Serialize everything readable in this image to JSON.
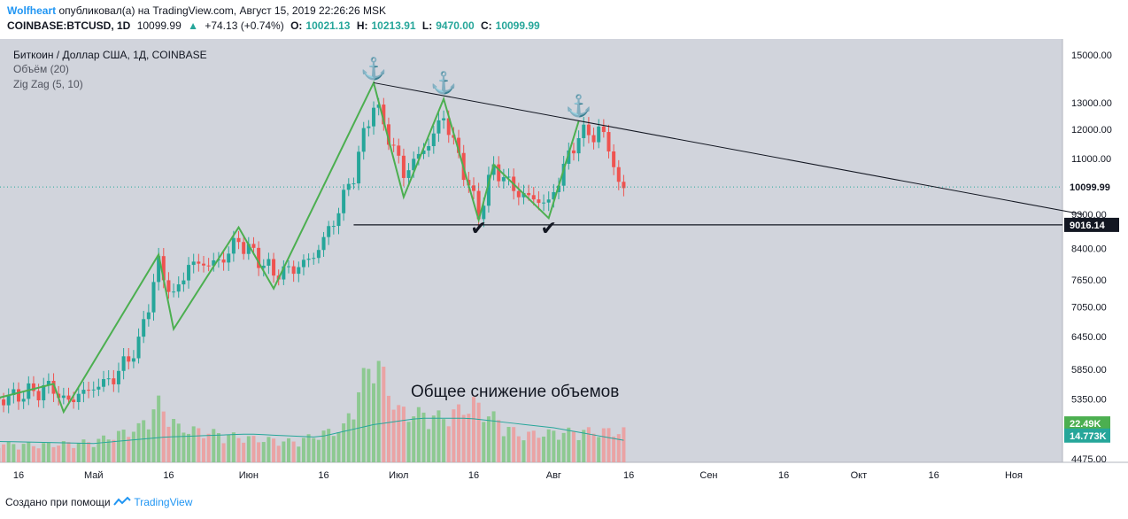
{
  "header": {
    "author": "Wolfheart",
    "published": "опубликовал(а) на TradingView.com, Август 15, 2019 22:26:26 MSK",
    "symbol": "COINBASE:BTCUSD, 1D",
    "last": "10099.99",
    "change": "+74.13 (+0.74%)",
    "o_label": "O:",
    "o_value": "10021.13",
    "h_label": "H:",
    "h_value": "10213.91",
    "l_label": "L:",
    "l_value": "9470.00",
    "c_label": "C:",
    "c_value": "10099.99"
  },
  "legend": {
    "title": "Биткоин / Доллар США, 1Д, COINBASE",
    "volume": "Объём (20)",
    "zigzag": "Zig Zag (5, 10)"
  },
  "annotation": "Общее снижение объемов",
  "footer": {
    "prefix": "Создано при помощи",
    "brand": "TradingView"
  },
  "colors": {
    "up": "#26a69a",
    "down": "#ef5350",
    "zigzag": "#4caf50",
    "plot_bg": "#d1d4dc",
    "volume_up": "#81c784",
    "volume_down": "#ef9a9a"
  },
  "icons": [
    "anchor-icon",
    "checkmark-icon",
    "tradingview-logo-icon"
  ],
  "chart_data": {
    "type": "candlestick",
    "title": "Биткоин / Доллар США, 1Д, COINBASE",
    "y_scale": "log",
    "ylim": [
      4300,
      15900
    ],
    "y_ticks": [
      "15000.00",
      "13000.00",
      "12000.00",
      "11000.00",
      "9300.00",
      "8400.00",
      "7650.00",
      "7050.00",
      "6450.00",
      "5850.00",
      "5350.00",
      "4475.00"
    ],
    "x_ticks": [
      "16",
      "Май",
      "16",
      "Июн",
      "16",
      "Июл",
      "16",
      "Авг",
      "16",
      "Сен",
      "16",
      "Окт",
      "16",
      "Ноя"
    ],
    "x_tick_dates": [
      "2019-04-16",
      "2019-05-01",
      "2019-05-16",
      "2019-06-01",
      "2019-06-16",
      "2019-07-01",
      "2019-07-16",
      "2019-08-01",
      "2019-08-16",
      "2019-09-01",
      "2019-09-16",
      "2019-10-01",
      "2019-10-16",
      "2019-11-01"
    ],
    "price_badges": [
      {
        "label": "10099.99",
        "value": 10099.99
      },
      {
        "label": "9016.14",
        "value": 9016.14
      }
    ],
    "volume_badges": [
      {
        "label": "22.49K",
        "value": 22490
      },
      {
        "label": "14.773K",
        "value": 14773
      }
    ],
    "zigzag_points": [
      [
        "2019-04-01",
        5150
      ],
      [
        "2019-04-23",
        5600
      ],
      [
        "2019-04-25",
        5150
      ],
      [
        "2019-05-14",
        8250
      ],
      [
        "2019-05-17",
        6600
      ],
      [
        "2019-05-30",
        8950
      ],
      [
        "2019-06-06",
        7450
      ],
      [
        "2019-06-26",
        13800
      ],
      [
        "2019-07-02",
        9800
      ],
      [
        "2019-07-10",
        13150
      ],
      [
        "2019-07-17",
        9150
      ],
      [
        "2019-07-20",
        10800
      ],
      [
        "2019-07-31",
        9200
      ],
      [
        "2019-08-06",
        12300
      ]
    ],
    "resistance_line": [
      [
        "2019-06-26",
        13800
      ],
      [
        "2019-11-15",
        9300
      ]
    ],
    "support_line": [
      [
        "2019-06-22",
        9016.14
      ],
      [
        "2019-11-15",
        9016.14
      ]
    ],
    "anchors": [
      [
        "2019-06-26",
        14100
      ],
      [
        "2019-07-10",
        13500
      ],
      [
        "2019-08-06",
        12600
      ]
    ],
    "checkmarks": [
      [
        "2019-07-17",
        8750
      ],
      [
        "2019-07-31",
        8750
      ]
    ],
    "key_prices": [
      [
        "2019-04-01",
        5100
      ],
      [
        "2019-04-10",
        5300
      ],
      [
        "2019-04-23",
        5550
      ],
      [
        "2019-04-25",
        5300
      ],
      [
        "2019-05-05",
        5700
      ],
      [
        "2019-05-10",
        6300
      ],
      [
        "2019-05-14",
        8000
      ],
      [
        "2019-05-17",
        7250
      ],
      [
        "2019-05-20",
        8000
      ],
      [
        "2019-05-26",
        8050
      ],
      [
        "2019-05-30",
        8600
      ],
      [
        "2019-06-06",
        7800
      ],
      [
        "2019-06-10",
        7900
      ],
      [
        "2019-06-14",
        8200
      ],
      [
        "2019-06-18",
        9100
      ],
      [
        "2019-06-22",
        10500
      ],
      [
        "2019-06-26",
        13000
      ],
      [
        "2019-07-02",
        10500
      ],
      [
        "2019-07-07",
        11500
      ],
      [
        "2019-07-10",
        12500
      ],
      [
        "2019-07-12",
        11500
      ],
      [
        "2019-07-16",
        9700
      ],
      [
        "2019-07-17",
        9300
      ],
      [
        "2019-07-20",
        10700
      ],
      [
        "2019-07-25",
        9900
      ],
      [
        "2019-07-31",
        9600
      ],
      [
        "2019-08-06",
        11800
      ],
      [
        "2019-08-10",
        11900
      ],
      [
        "2019-08-12",
        11500
      ],
      [
        "2019-08-14",
        10050
      ],
      [
        "2019-08-15",
        10099.99
      ]
    ],
    "volume_profile": [
      [
        "2019-04-01",
        6
      ],
      [
        "2019-04-20",
        5
      ],
      [
        "2019-05-01",
        6
      ],
      [
        "2019-05-10",
        10
      ],
      [
        "2019-05-14",
        17
      ],
      [
        "2019-05-18",
        10
      ],
      [
        "2019-06-01",
        7
      ],
      [
        "2019-06-10",
        6
      ],
      [
        "2019-06-20",
        10
      ],
      [
        "2019-06-26",
        31
      ],
      [
        "2019-07-01",
        15
      ],
      [
        "2019-07-10",
        13
      ],
      [
        "2019-07-16",
        17
      ],
      [
        "2019-07-25",
        8
      ],
      [
        "2019-08-06",
        9
      ],
      [
        "2019-08-15",
        9
      ]
    ],
    "volume_ma": [
      [
        "2019-04-01",
        7
      ],
      [
        "2019-05-01",
        6
      ],
      [
        "2019-05-15",
        8
      ],
      [
        "2019-06-01",
        9
      ],
      [
        "2019-06-15",
        8
      ],
      [
        "2019-06-26",
        12
      ],
      [
        "2019-07-05",
        14
      ],
      [
        "2019-07-15",
        14
      ],
      [
        "2019-08-01",
        11
      ],
      [
        "2019-08-15",
        7
      ]
    ]
  }
}
